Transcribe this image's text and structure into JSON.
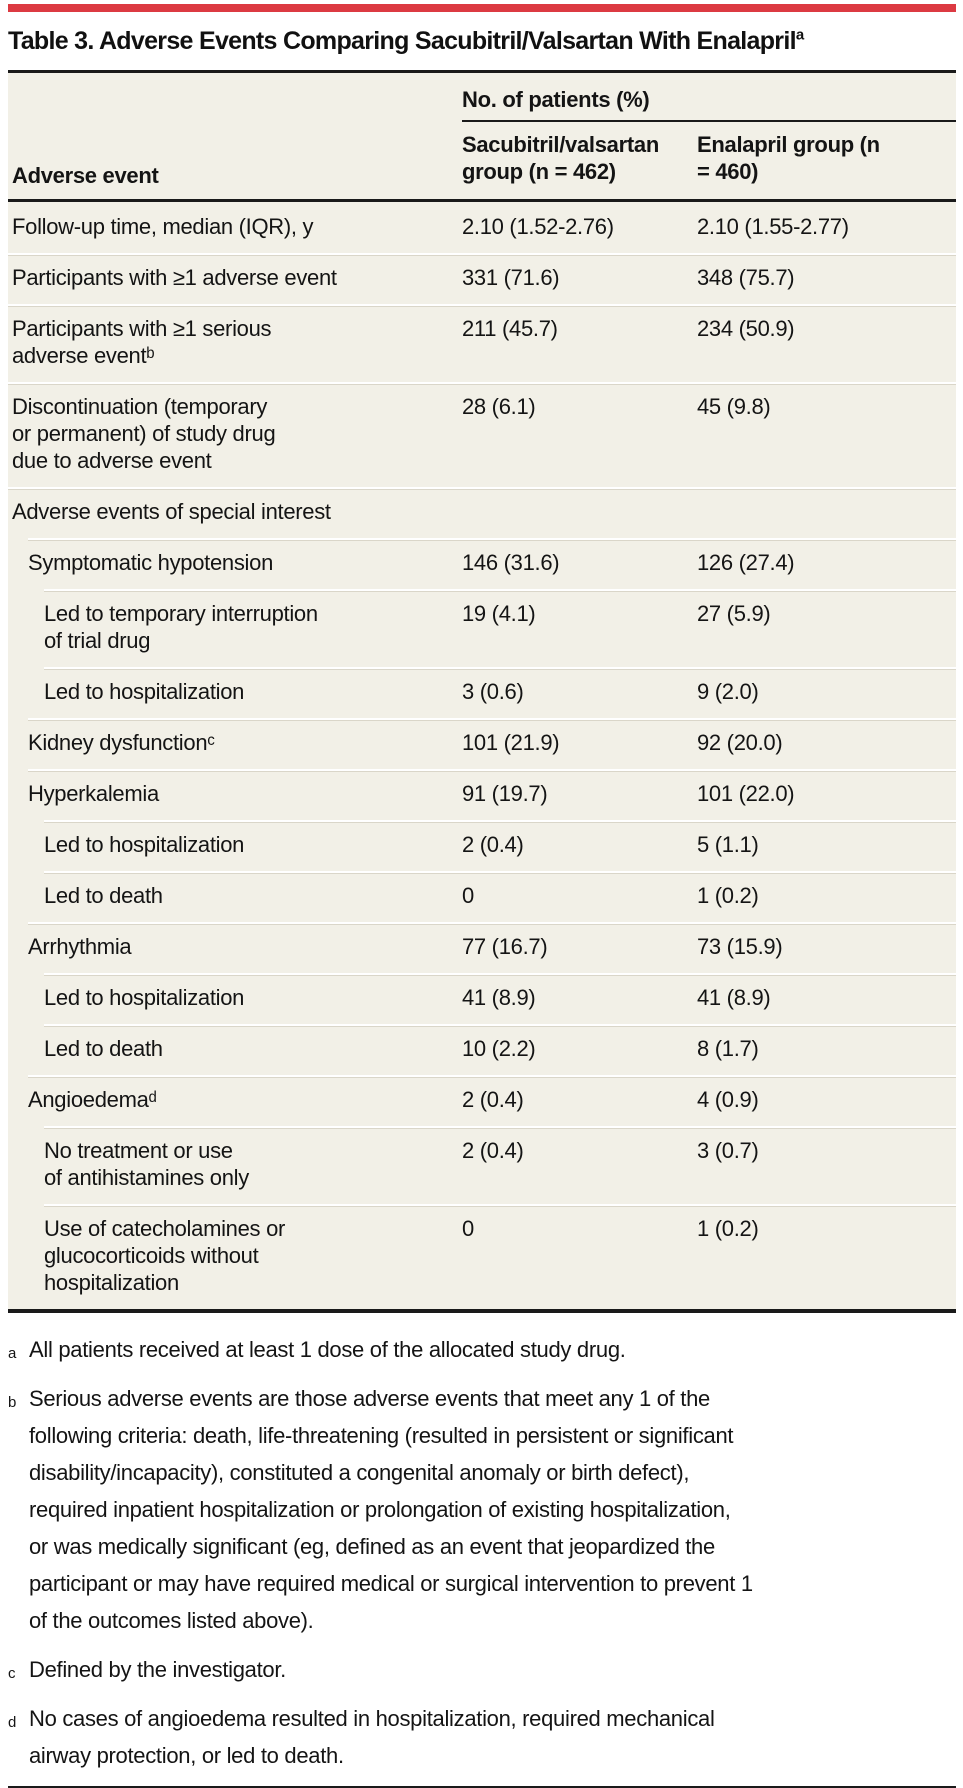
{
  "title": {
    "text": "Table 3. Adverse Events Comparing Sacubitril/Valsartan With Enalapril",
    "superscript": "a"
  },
  "table": {
    "group_header": "No. of patients (%)",
    "columns": {
      "col1": "Adverse event",
      "col2": "Sacubitril/valsartan group (n = 462)",
      "col3": "Enalapril group (n = 460)"
    },
    "rows": [
      {
        "indent": 0,
        "label": "Follow-up time, median (IQR), y",
        "v1": "2.10 (1.52-2.76)",
        "v2": "2.10 (1.55-2.77)"
      },
      {
        "indent": 0,
        "label": "Participants with ≥1 adverse event",
        "v1": "331 (71.6)",
        "v2": "348 (75.7)"
      },
      {
        "indent": 0,
        "label": "Participants with ≥1 serious\nadverse eventᵇ",
        "v1": "211 (45.7)",
        "v2": "234 (50.9)"
      },
      {
        "indent": 0,
        "label": "Discontinuation (temporary\nor permanent) of study drug\ndue to adverse event",
        "v1": "28 (6.1)",
        "v2": "45 (9.8)"
      },
      {
        "indent": 0,
        "label": "Adverse events of special interest",
        "v1": "",
        "v2": ""
      },
      {
        "indent": 1,
        "label": "Symptomatic hypotension",
        "v1": "146 (31.6)",
        "v2": "126 (27.4)"
      },
      {
        "indent": 2,
        "label": "Led to temporary interruption\nof trial drug",
        "v1": "19 (4.1)",
        "v2": "27 (5.9)"
      },
      {
        "indent": 2,
        "label": "Led to hospitalization",
        "v1": "3 (0.6)",
        "v2": "9 (2.0)"
      },
      {
        "indent": 1,
        "label": "Kidney dysfunctionᶜ",
        "v1": "101 (21.9)",
        "v2": "92 (20.0)"
      },
      {
        "indent": 1,
        "label": "Hyperkalemia",
        "v1": "91 (19.7)",
        "v2": "101 (22.0)"
      },
      {
        "indent": 2,
        "label": "Led to hospitalization",
        "v1": "2 (0.4)",
        "v2": "5 (1.1)"
      },
      {
        "indent": 2,
        "label": "Led to death",
        "v1": "0",
        "v2": "1 (0.2)"
      },
      {
        "indent": 1,
        "label": "Arrhythmia",
        "v1": "77 (16.7)",
        "v2": "73 (15.9)"
      },
      {
        "indent": 2,
        "label": "Led to hospitalization",
        "v1": "41 (8.9)",
        "v2": "41 (8.9)"
      },
      {
        "indent": 2,
        "label": "Led to death",
        "v1": "10 (2.2)",
        "v2": "8 (1.7)"
      },
      {
        "indent": 1,
        "label": "Angioedemaᵈ",
        "v1": "2 (0.4)",
        "v2": "4 (0.9)"
      },
      {
        "indent": 2,
        "label": "No treatment or use\nof antihistamines only",
        "v1": "2 (0.4)",
        "v2": "3 (0.7)"
      },
      {
        "indent": 2,
        "label": "Use of catecholamines or\nglucocorticoids without\nhospitalization",
        "v1": "0",
        "v2": "1 (0.2)"
      }
    ]
  },
  "footnotes": [
    {
      "marker": "a",
      "text": "All patients received at least 1 dose of the allocated study drug."
    },
    {
      "marker": "b",
      "text": "Serious adverse events are those adverse events that meet any 1 of the\nfollowing criteria: death, life-threatening (resulted in persistent or significant\ndisability/incapacity), constituted a congenital anomaly or birth defect),\nrequired inpatient hospitalization or prolongation of existing hospitalization,\nor was medically significant (eg, defined as an event that jeopardized the\nparticipant or may have required medical or surgical intervention to prevent 1\nof the outcomes listed above)."
    },
    {
      "marker": "c",
      "text": "Defined by the investigator."
    },
    {
      "marker": "d",
      "text": "No cases of angioedema resulted in hospitalization, required mechanical\nairway protection, or led to death."
    }
  ],
  "colors": {
    "accent_red": "#DC3A42",
    "table_background": "#F2F0E7",
    "rule_black": "#1A1A1A",
    "row_separator": "#DAD6C9",
    "text": "#141414"
  }
}
